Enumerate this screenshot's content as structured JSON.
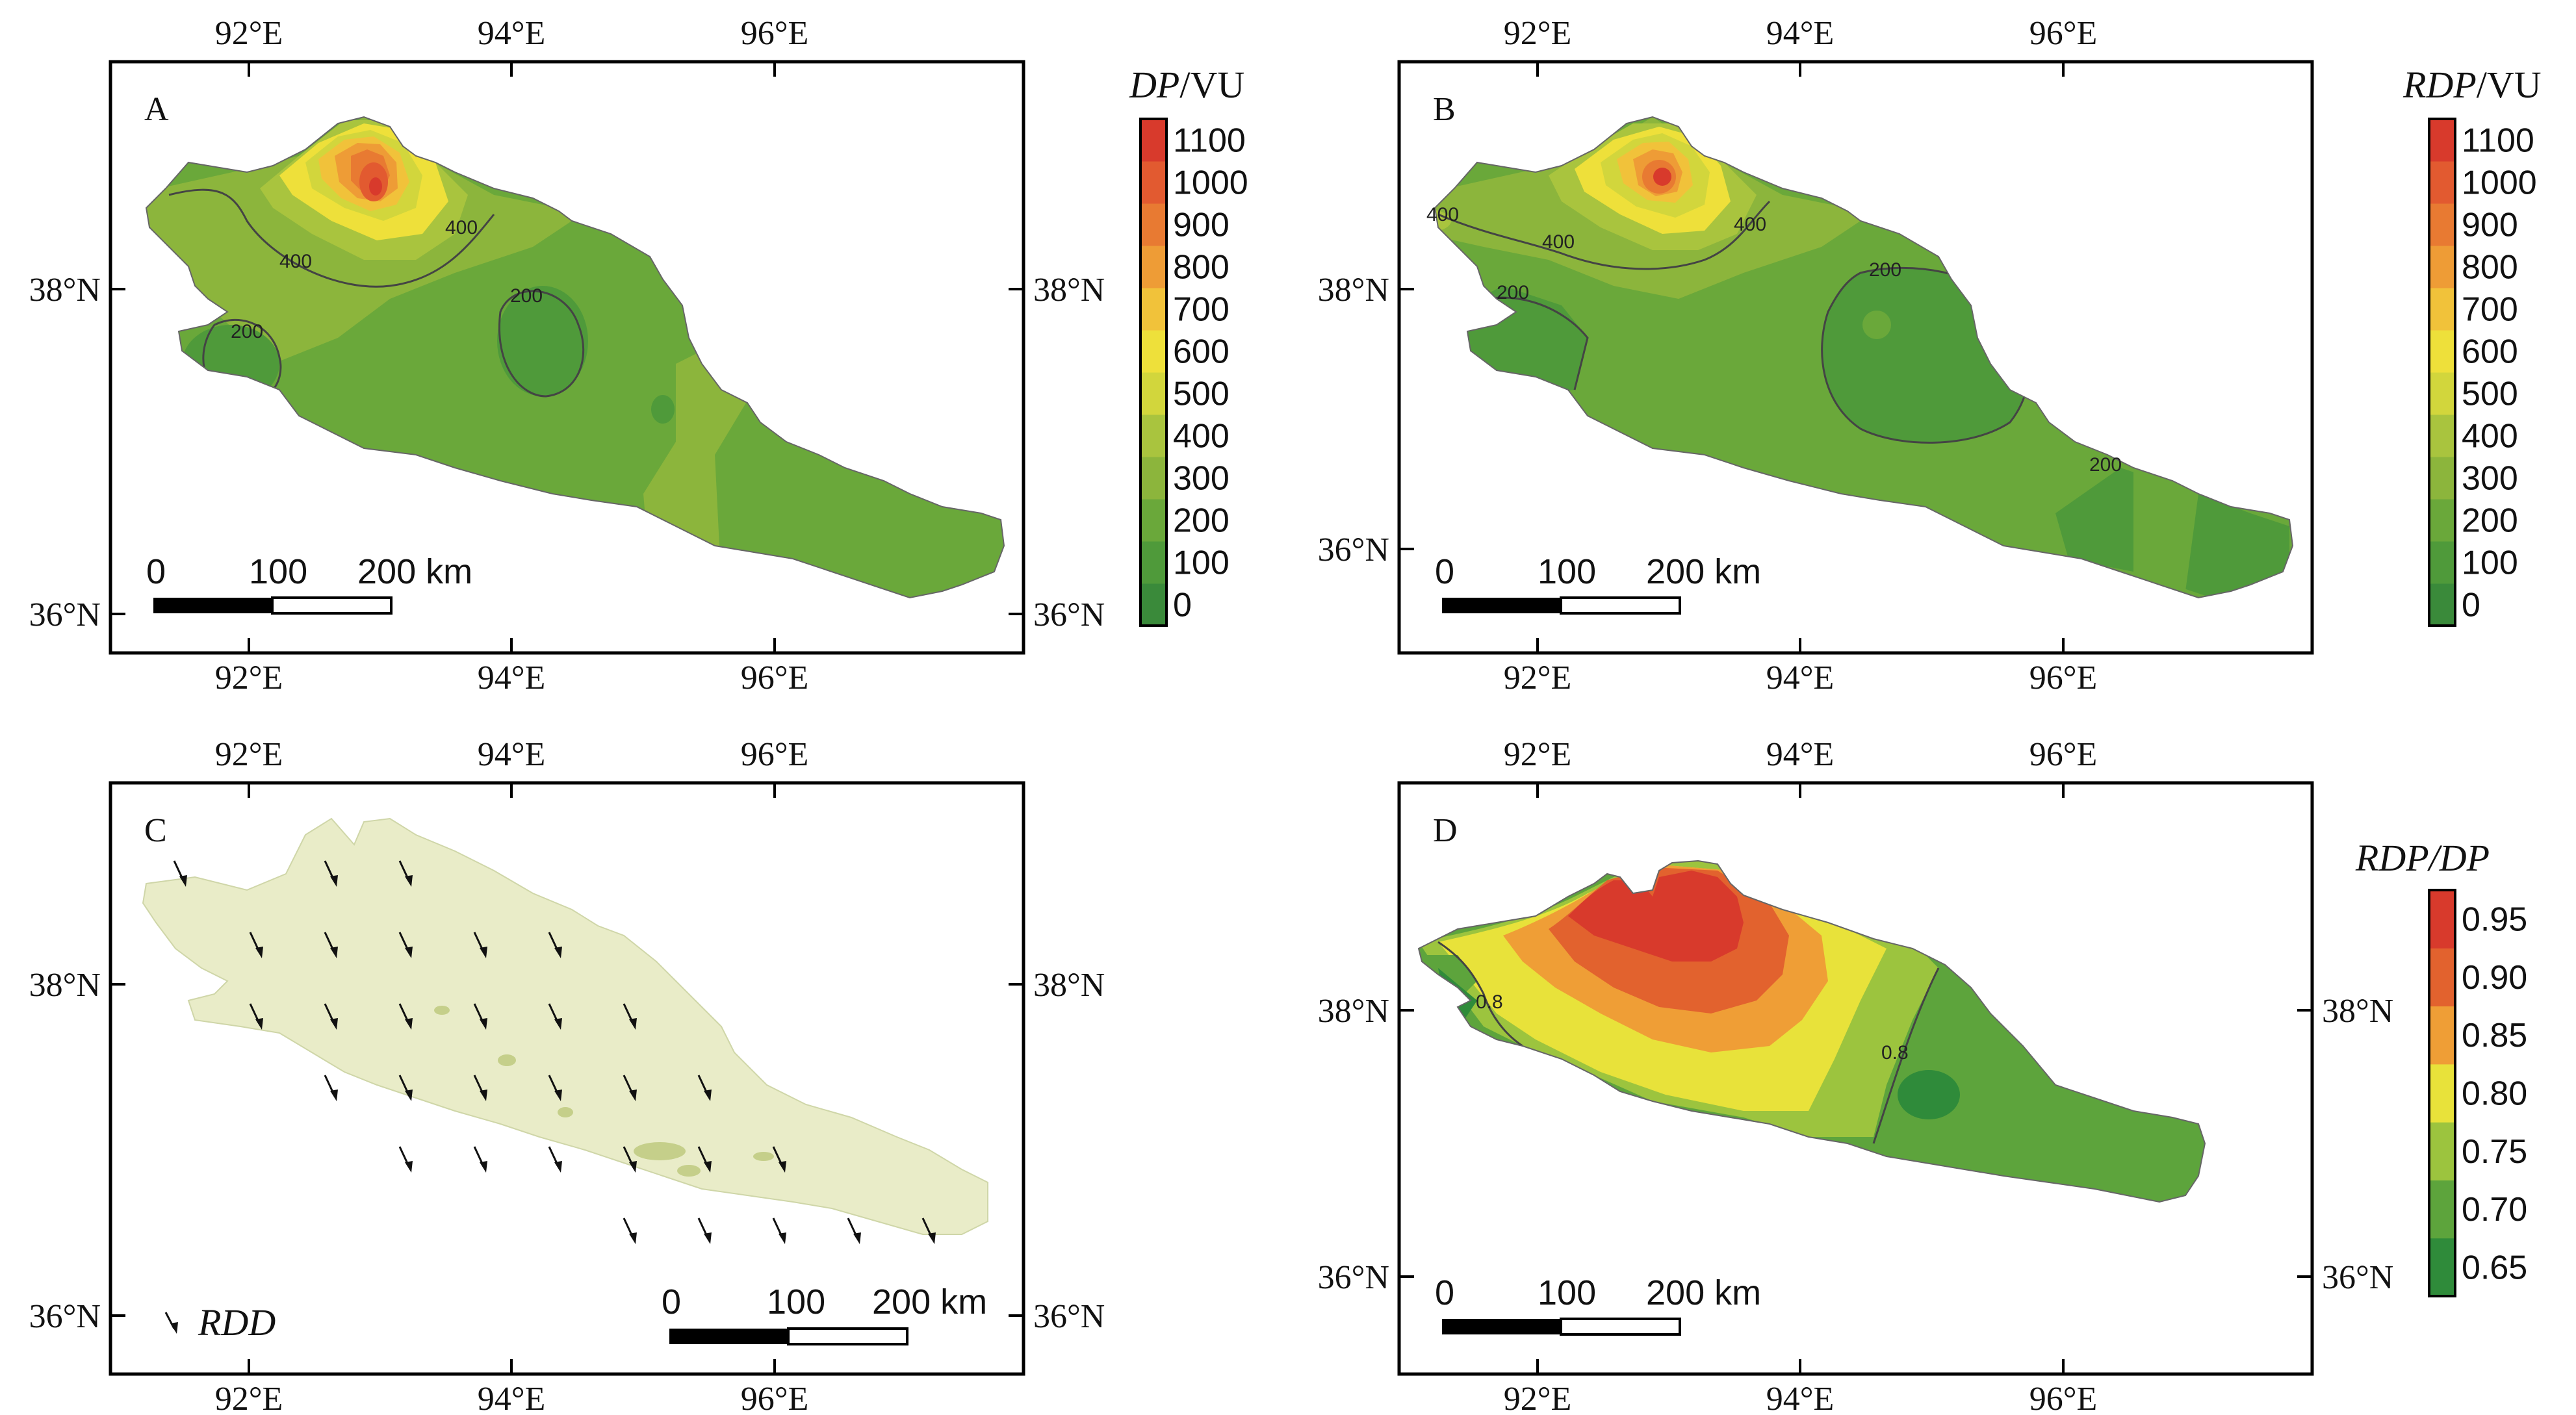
{
  "panels": {
    "A": {
      "letter": "A",
      "top_ticks": [
        "92°E",
        "94°E",
        "96°E"
      ],
      "bottom_ticks": [
        "92°E",
        "94°E",
        "96°E"
      ],
      "left_ticks": [
        "38°N",
        "36°N"
      ],
      "right_ticks": [
        "38°N",
        "36°N"
      ],
      "contour_labels": [
        "400",
        "400",
        "200",
        "200"
      ],
      "scale": {
        "zero": "0",
        "mid": "100",
        "end": "200 km"
      },
      "colorbar": {
        "title_italic": "DP",
        "title_unit": "/VU",
        "labels": [
          "1100",
          "1000",
          "900",
          "800",
          "700",
          "600",
          "500",
          "400",
          "300",
          "200",
          "100",
          "0"
        ]
      }
    },
    "B": {
      "letter": "B",
      "top_ticks": [
        "92°E",
        "94°E",
        "96°E"
      ],
      "bottom_ticks": [
        "92°E",
        "94°E",
        "96°E"
      ],
      "left_ticks": [
        "38°N",
        "36°N"
      ],
      "contour_labels": [
        "400",
        "400",
        "400",
        "200",
        "200",
        "200"
      ],
      "scale": {
        "zero": "0",
        "mid": "100",
        "end": "200 km"
      },
      "colorbar": {
        "title_italic": "RDP",
        "title_unit": "/VU",
        "labels": [
          "1100",
          "1000",
          "900",
          "800",
          "700",
          "600",
          "500",
          "400",
          "300",
          "200",
          "100",
          "0"
        ]
      }
    },
    "C": {
      "letter": "C",
      "top_ticks": [
        "92°E",
        "94°E",
        "96°E"
      ],
      "bottom_ticks": [
        "92°E",
        "94°E",
        "96°E"
      ],
      "left_ticks": [
        "38°N",
        "36°N"
      ],
      "right_ticks": [
        "38°N",
        "36°N"
      ],
      "legend_label": "RDD",
      "scale": {
        "zero": "0",
        "mid": "100",
        "end": "200 km"
      }
    },
    "D": {
      "letter": "D",
      "top_ticks": [
        "92°E",
        "94°E",
        "96°E"
      ],
      "bottom_ticks": [
        "92°E",
        "94°E",
        "96°E"
      ],
      "left_ticks": [
        "38°N",
        "36°N"
      ],
      "right_ticks": [
        "38°N",
        "36°N"
      ],
      "contour_labels": [
        "0.8",
        "0.8"
      ],
      "scale": {
        "zero": "0",
        "mid": "100",
        "end": "200 km"
      },
      "colorbar": {
        "title": "RDP/DP",
        "labels": [
          "0.95",
          "0.90",
          "0.85",
          "0.80",
          "0.75",
          "0.70",
          "0.65"
        ]
      }
    }
  },
  "colors": {
    "dp_scale": [
      "#3a8a3a",
      "#4f9a3a",
      "#6aa83a",
      "#8cb53c",
      "#a9c43e",
      "#d2d63c",
      "#eee03a",
      "#f1c23a",
      "#ee9c36",
      "#e87a32",
      "#e25a30",
      "#d83a2c"
    ],
    "ratio_scale": [
      "#2f8b3a",
      "#5da43c",
      "#9cc43e",
      "#e8e23a",
      "#ef9e36",
      "#e2622e",
      "#d83a2c"
    ],
    "sand": "#e9ecc8",
    "frame": "#000000"
  }
}
